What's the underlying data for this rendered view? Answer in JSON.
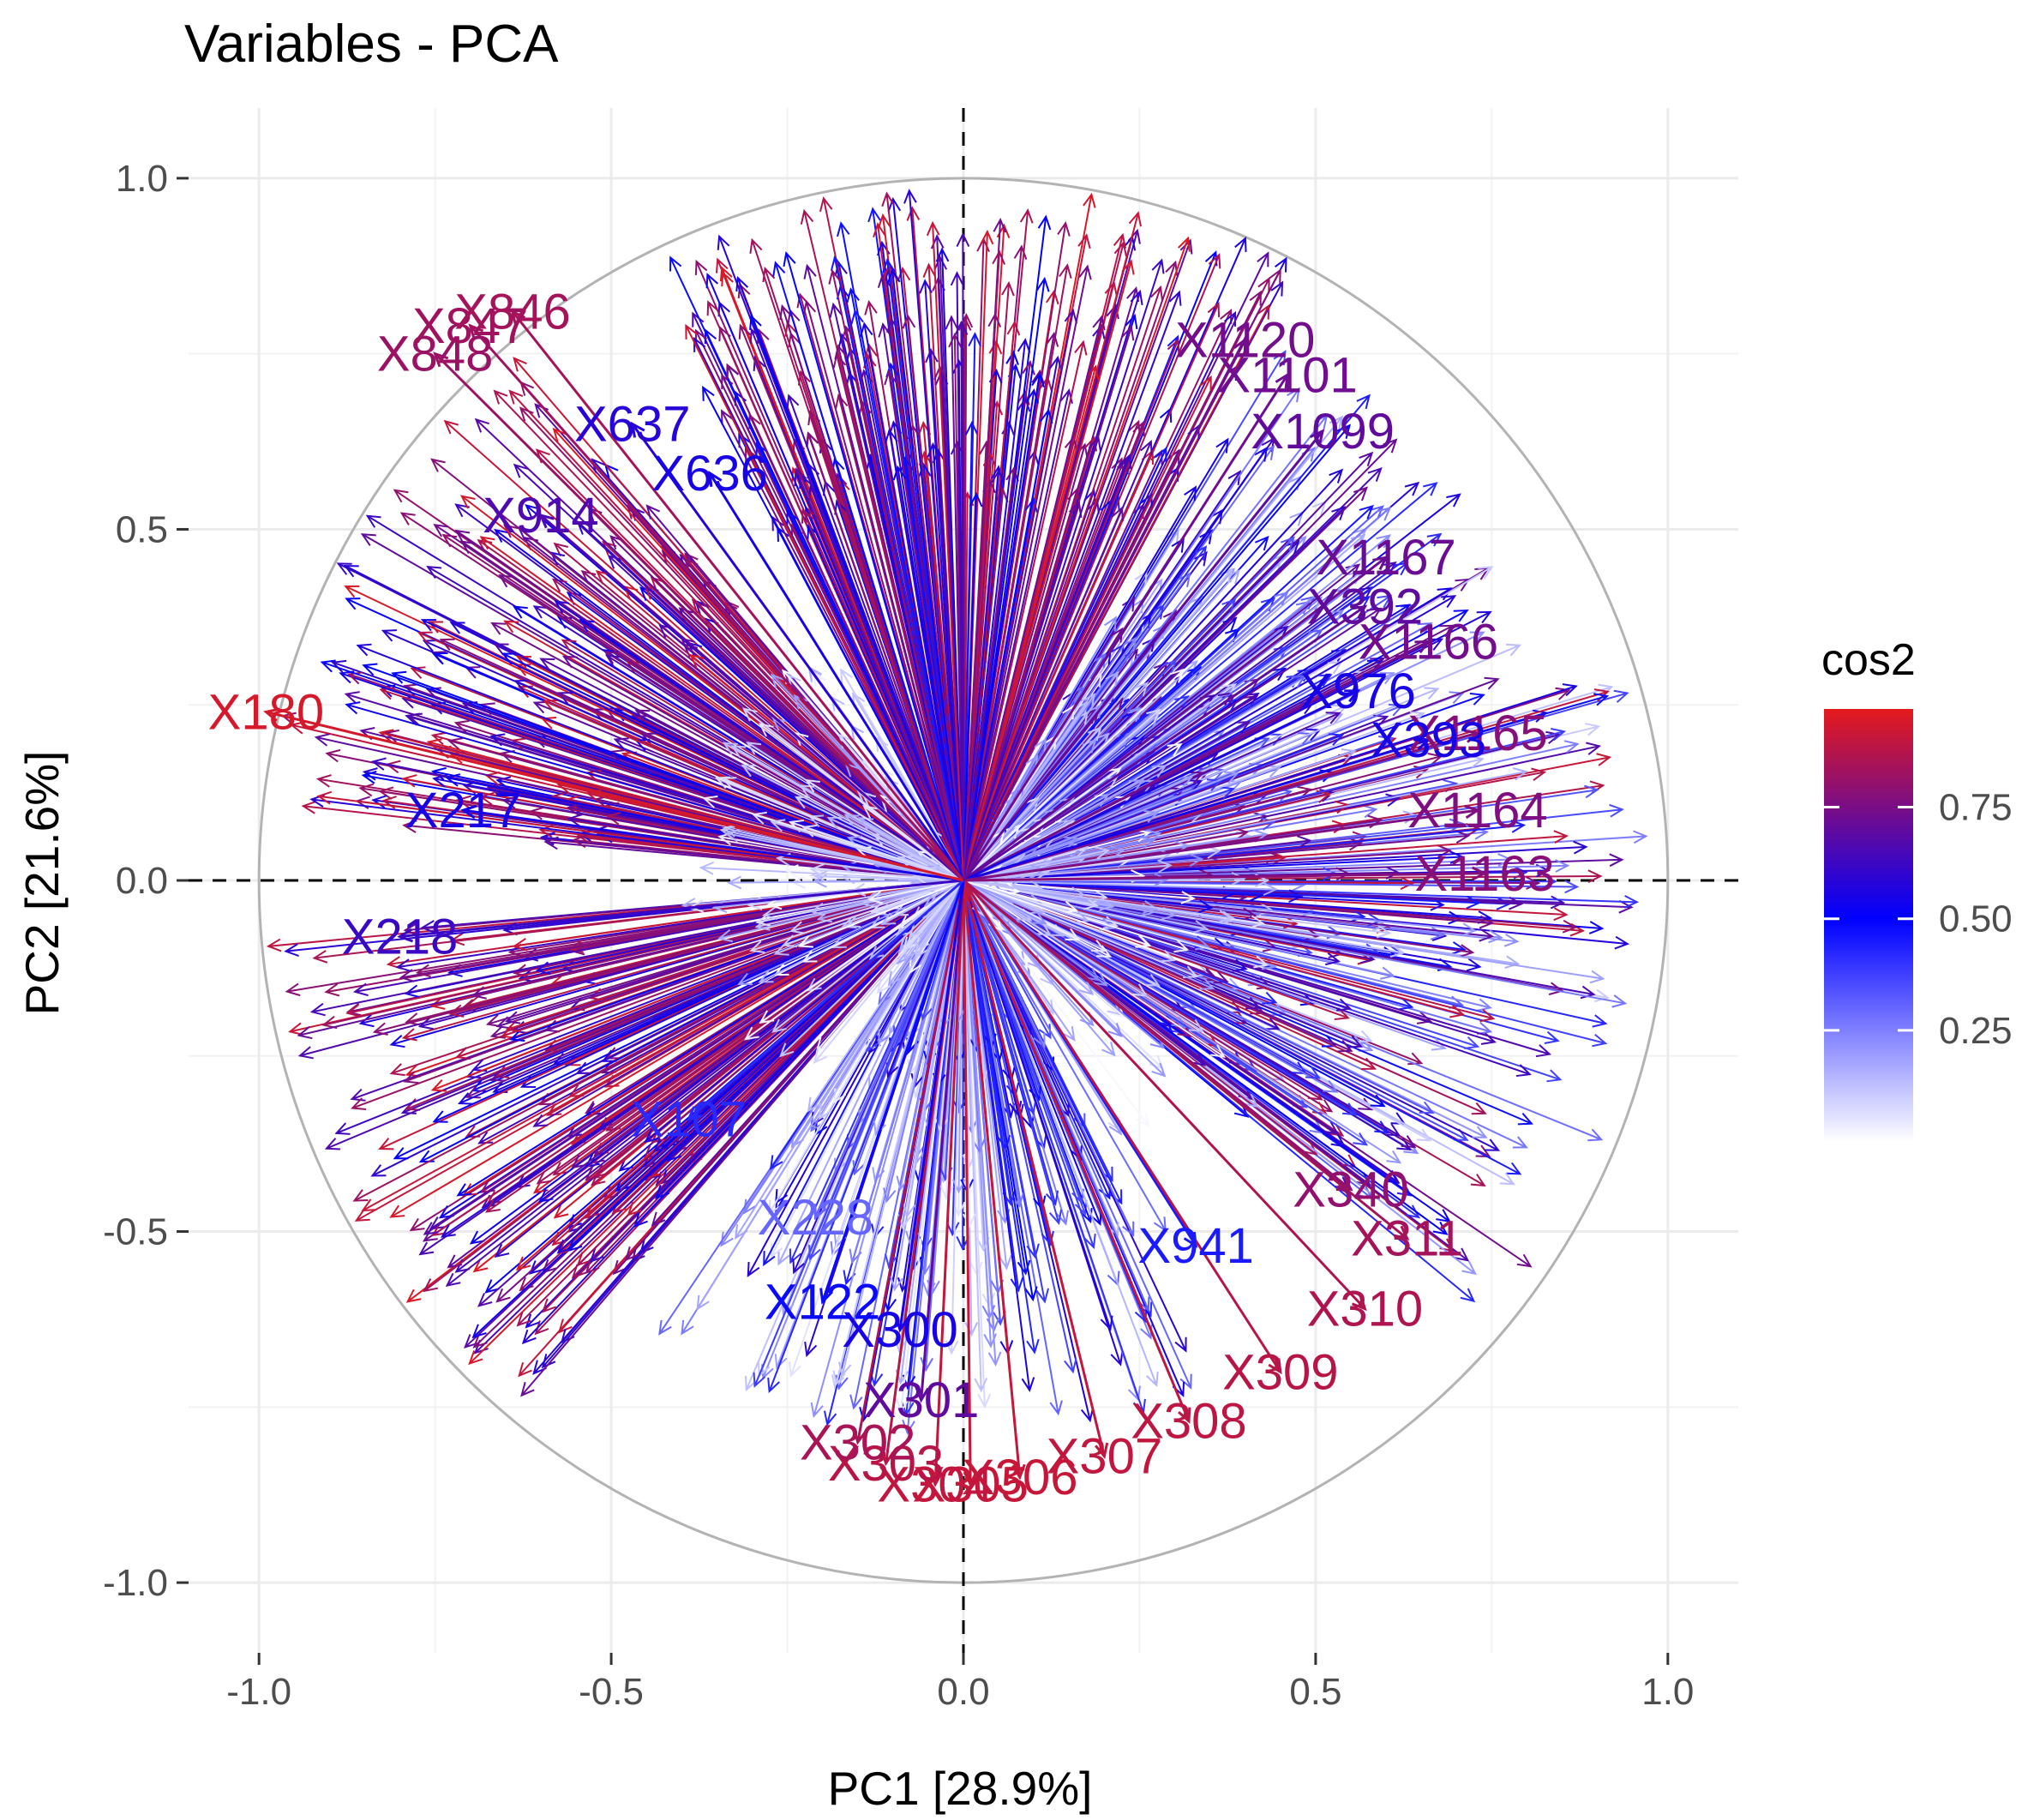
{
  "chart_data": {
    "type": "scatter",
    "title": "Variables - PCA",
    "xlabel": "PC1 [28.9%]",
    "ylabel": "PC2 [21.6%]",
    "xlim": [
      -1.1,
      1.1
    ],
    "ylim": [
      -1.1,
      1.1
    ],
    "x_ticks": [
      {
        "value": -1.0,
        "label": "-1.0"
      },
      {
        "value": -0.5,
        "label": "-0.5"
      },
      {
        "value": 0.0,
        "label": "0.0"
      },
      {
        "value": 0.5,
        "label": "0.5"
      },
      {
        "value": 1.0,
        "label": "1.0"
      }
    ],
    "y_ticks": [
      {
        "value": 1.0,
        "label": "1.0"
      },
      {
        "value": 0.5,
        "label": "0.5"
      },
      {
        "value": 0.0,
        "label": "0.0"
      },
      {
        "value": -0.5,
        "label": "-0.5"
      },
      {
        "value": -1.0,
        "label": "-1.0"
      }
    ],
    "grid": true,
    "correlation_circle_radius": 1.0,
    "reference_lines": {
      "x": 0,
      "y": 0
    },
    "color_scale": {
      "variable": "cos2",
      "low_color": "#ffffff",
      "mid_color": "#0000ff",
      "high_color": "#e41a1c",
      "midpoint": 0.5,
      "range": [
        0.0,
        0.97
      ],
      "breaks": [
        {
          "value": 0.75,
          "label": "0.75"
        },
        {
          "value": 0.5,
          "label": "0.50"
        },
        {
          "value": 0.25,
          "label": "0.25"
        }
      ]
    },
    "legend_position": "right",
    "variables": [
      {
        "name": "X1167",
        "x": 0.6,
        "y": 0.46,
        "cos2": 0.72
      },
      {
        "name": "X392",
        "x": 0.57,
        "y": 0.39,
        "cos2": 0.7
      },
      {
        "name": "X1166",
        "x": 0.66,
        "y": 0.34,
        "cos2": 0.74
      },
      {
        "name": "X976",
        "x": 0.56,
        "y": 0.27,
        "cos2": 0.55
      },
      {
        "name": "X1165",
        "x": 0.73,
        "y": 0.21,
        "cos2": 0.78
      },
      {
        "name": "X393",
        "x": 0.66,
        "y": 0.2,
        "cos2": 0.55
      },
      {
        "name": "X1164",
        "x": 0.73,
        "y": 0.1,
        "cos2": 0.76
      },
      {
        "name": "X1163",
        "x": 0.74,
        "y": 0.01,
        "cos2": 0.78
      },
      {
        "name": "X217",
        "x": -0.71,
        "y": 0.1,
        "cos2": 0.55
      },
      {
        "name": "X218",
        "x": -0.8,
        "y": -0.08,
        "cos2": 0.62
      },
      {
        "name": "X228",
        "x": -0.21,
        "y": -0.48,
        "cos2": 0.3
      },
      {
        "name": "X941",
        "x": 0.33,
        "y": -0.52,
        "cos2": 0.45
      },
      {
        "name": "X340",
        "x": 0.55,
        "y": -0.44,
        "cos2": 0.8
      },
      {
        "name": "X311",
        "x": 0.63,
        "y": -0.51,
        "cos2": 0.84
      },
      {
        "name": "X310",
        "x": 0.57,
        "y": -0.61,
        "cos2": 0.86
      },
      {
        "name": "X309",
        "x": 0.45,
        "y": -0.7,
        "cos2": 0.88
      },
      {
        "name": "X308",
        "x": 0.32,
        "y": -0.77,
        "cos2": 0.89
      },
      {
        "name": "X307",
        "x": 0.2,
        "y": -0.82,
        "cos2": 0.9
      },
      {
        "name": "X306",
        "x": 0.08,
        "y": -0.85,
        "cos2": 0.91
      },
      {
        "name": "X305",
        "x": 0.01,
        "y": -0.86,
        "cos2": 0.91
      },
      {
        "name": "X304",
        "x": -0.04,
        "y": -0.86,
        "cos2": 0.9
      },
      {
        "name": "X303",
        "x": -0.11,
        "y": -0.83,
        "cos2": 0.88
      },
      {
        "name": "X302",
        "x": -0.15,
        "y": -0.8,
        "cos2": 0.85
      },
      {
        "name": "X301",
        "x": -0.06,
        "y": -0.74,
        "cos2": 0.7
      },
      {
        "name": "X300",
        "x": -0.09,
        "y": -0.64,
        "cos2": 0.55
      },
      {
        "name": "X122",
        "x": -0.2,
        "y": -0.6,
        "cos2": 0.48
      },
      {
        "name": "X107",
        "x": -0.39,
        "y": -0.34,
        "cos2": 0.42
      },
      {
        "name": "X637",
        "x": -0.47,
        "y": 0.65,
        "cos2": 0.58
      },
      {
        "name": "X636",
        "x": -0.36,
        "y": 0.58,
        "cos2": 0.55
      },
      {
        "name": "X914",
        "x": -0.6,
        "y": 0.52,
        "cos2": 0.66
      },
      {
        "name": "X848",
        "x": -0.75,
        "y": 0.75,
        "cos2": 0.82
      },
      {
        "name": "X847",
        "x": -0.7,
        "y": 0.79,
        "cos2": 0.83
      },
      {
        "name": "X846",
        "x": -0.64,
        "y": 0.81,
        "cos2": 0.84
      },
      {
        "name": "X180",
        "x": -0.99,
        "y": 0.24,
        "cos2": 0.94
      },
      {
        "name": "X1120",
        "x": 0.4,
        "y": 0.77,
        "cos2": 0.74
      },
      {
        "name": "X1101",
        "x": 0.46,
        "y": 0.72,
        "cos2": 0.73
      },
      {
        "name": "X1099",
        "x": 0.51,
        "y": 0.64,
        "cos2": 0.7
      }
    ]
  }
}
